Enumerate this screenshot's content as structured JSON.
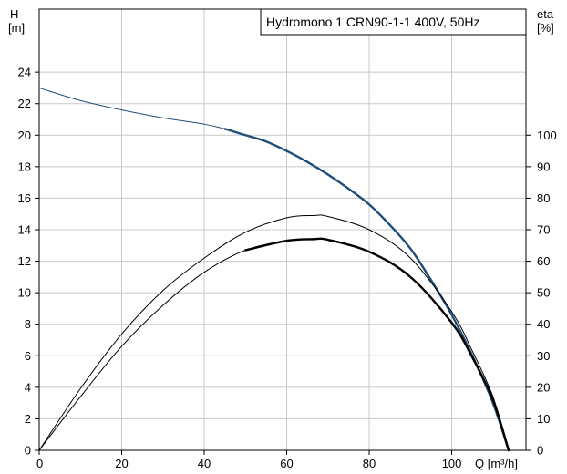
{
  "chart_data": {
    "type": "line",
    "title": "Hydromono 1 CRN90-1-1 400V, 50Hz",
    "x_axis": {
      "label": "Q [m³/h]",
      "range": [
        0,
        118
      ],
      "ticks": [
        0,
        20,
        40,
        60,
        80,
        100
      ]
    },
    "y_axis_left": {
      "label_line1": "H",
      "label_line2": "[m]",
      "range": [
        0,
        28
      ],
      "ticks": [
        0,
        2,
        4,
        6,
        8,
        10,
        12,
        14,
        16,
        18,
        20,
        22,
        24
      ]
    },
    "y_axis_right": {
      "label_line1": "eta",
      "label_line2": "[%]",
      "range": [
        0,
        140
      ],
      "ticks": [
        0,
        10,
        20,
        30,
        40,
        50,
        60,
        70,
        80,
        90,
        100
      ]
    },
    "grid": true,
    "series": [
      {
        "axis": "left",
        "color": "#1f4e79",
        "x": [
          0,
          10,
          20,
          30,
          40,
          45,
          50,
          55,
          60,
          65,
          70,
          75,
          80,
          85,
          90,
          95,
          100,
          105,
          110,
          113.8
        ],
        "y": [
          23.0,
          22.2,
          21.6,
          21.1,
          20.7,
          20.4,
          20.0,
          19.6,
          19.0,
          18.3,
          17.5,
          16.6,
          15.6,
          14.3,
          12.8,
          10.8,
          8.6,
          6.0,
          3.0,
          0.0
        ],
        "bold_from_x": 45
      },
      {
        "axis": "right",
        "color": "#000000",
        "x": [
          0,
          10,
          20,
          30,
          40,
          50,
          60,
          66.5,
          70,
          80,
          90,
          100,
          105,
          110,
          113.8
        ],
        "y": [
          0,
          19.6,
          36.9,
          50.7,
          61.0,
          69.2,
          73.8,
          74.5,
          74.2,
          70.0,
          61.0,
          44.0,
          31.5,
          17.0,
          0
        ],
        "bold_from_x": null
      },
      {
        "axis": "right",
        "color": "#000000",
        "x": [
          0,
          10,
          20,
          30,
          40,
          50,
          60,
          66.5,
          70,
          80,
          90,
          100,
          105,
          110,
          113.8
        ],
        "y": [
          0,
          17.0,
          33.0,
          46.0,
          56.5,
          63.5,
          66.5,
          67.0,
          66.8,
          63.0,
          55.0,
          40.5,
          29.5,
          16.0,
          0
        ],
        "bold_from_x": 45
      }
    ]
  }
}
